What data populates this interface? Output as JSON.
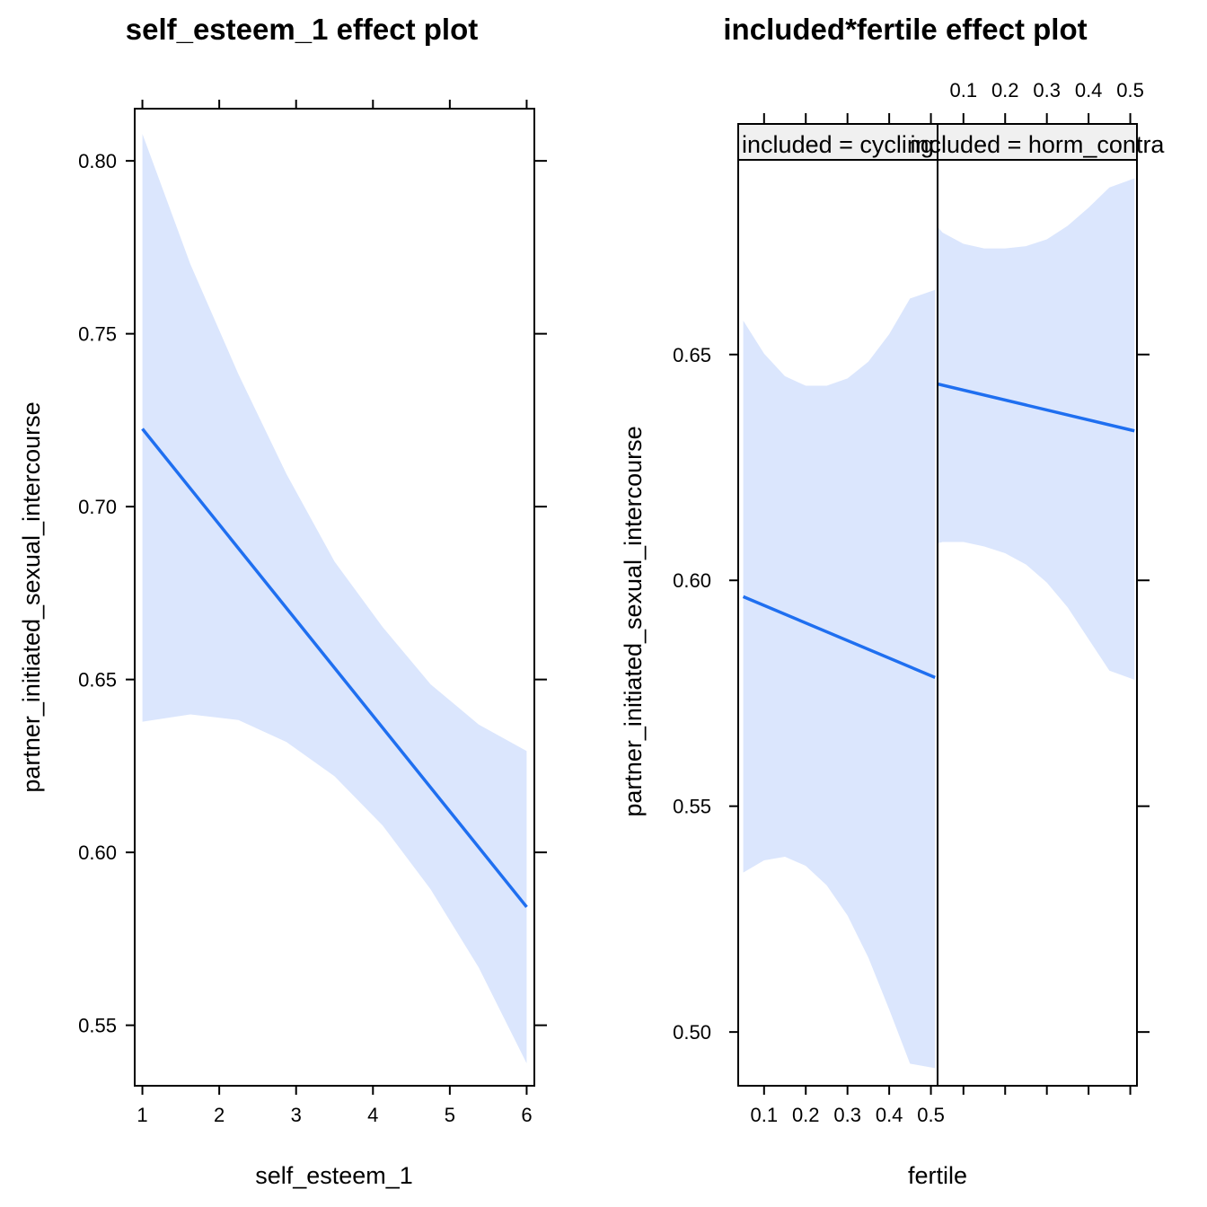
{
  "chart_data": [
    {
      "type": "line",
      "title": "self_esteem_1 effect plot",
      "xlabel": "self_esteem_1",
      "ylabel": "partner_initiated_sexual_intercourse",
      "xlim": [
        0.9,
        6.1
      ],
      "ylim": [
        0.5325,
        0.8151
      ],
      "x_ticks": [
        "1",
        "2",
        "3",
        "4",
        "5",
        "6"
      ],
      "y_ticks": [
        "0.55",
        "0.60",
        "0.65",
        "0.70",
        "0.75",
        "0.80"
      ],
      "series": [
        {
          "x": [
            1,
            6
          ],
          "fit": [
            0.7225,
            0.5842
          ]
        }
      ],
      "band": {
        "x": [
          1,
          1.625,
          2.25,
          2.875,
          3.5,
          4.125,
          4.75,
          5.375,
          6
        ],
        "upper": [
          0.8078,
          0.7701,
          0.7383,
          0.7094,
          0.6841,
          0.6652,
          0.6486,
          0.637,
          0.6293
        ],
        "lower": [
          0.6378,
          0.6399,
          0.6383,
          0.6319,
          0.622,
          0.6078,
          0.5893,
          0.5667,
          0.539
        ]
      }
    },
    {
      "type": "line",
      "title": "included*fertile effect plot",
      "xlabel": "fertile",
      "ylabel": "partner_initiated_sexual_intercourse",
      "xlim": [
        0.038,
        0.516
      ],
      "ylim": [
        0.4881,
        0.6931
      ],
      "x_ticks": [
        "0.1",
        "0.2",
        "0.3",
        "0.4",
        "0.5"
      ],
      "y_ticks": [
        "0.50",
        "0.55",
        "0.60",
        "0.65"
      ],
      "panels": [
        {
          "strip": "included = cycling",
          "fit_x": [
            0.05,
            0.51
          ],
          "fit": [
            0.5964,
            0.5785
          ],
          "band": {
            "x": [
              0.05,
              0.1,
              0.15,
              0.2,
              0.25,
              0.3,
              0.35,
              0.4,
              0.45,
              0.51
            ],
            "upper": [
              0.6575,
              0.6502,
              0.6452,
              0.6431,
              0.6431,
              0.6447,
              0.6484,
              0.6545,
              0.6624,
              0.6643
            ],
            "lower": [
              0.5353,
              0.538,
              0.5388,
              0.5368,
              0.5325,
              0.5258,
              0.5165,
              0.505,
              0.493,
              0.492
            ]
          }
        },
        {
          "strip": "included = horm_contra",
          "fit_x": [
            0.01,
            0.51
          ],
          "fit": [
            0.6441,
            0.6331
          ],
          "band": {
            "x": [
              0.01,
              0.05,
              0.1,
              0.15,
              0.2,
              0.25,
              0.3,
              0.35,
              0.4,
              0.45,
              0.51
            ],
            "upper": [
              0.6813,
              0.677,
              0.6745,
              0.6735,
              0.6735,
              0.674,
              0.6755,
              0.6785,
              0.6825,
              0.687,
              0.689
            ],
            "lower": [
              0.6075,
              0.6085,
              0.6085,
              0.6075,
              0.606,
              0.6035,
              0.5995,
              0.594,
              0.587,
              0.58,
              0.578
            ]
          }
        }
      ]
    }
  ]
}
